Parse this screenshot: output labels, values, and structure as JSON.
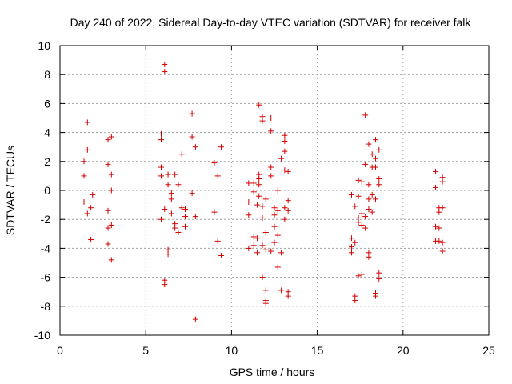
{
  "chart_data": {
    "type": "scatter",
    "title": "Day 240 of 2022, Sidereal Day-to-day VTEC variation (SDTVAR) for receiver falk",
    "xlabel": "GPS time / hours",
    "ylabel": "SDTVAR / TECUs",
    "xlim": [
      0,
      25
    ],
    "ylim": [
      -10,
      10
    ],
    "xticks": [
      0,
      5,
      10,
      15,
      20,
      25
    ],
    "xtick_labels": [
      "0",
      "5",
      "10",
      "15",
      "20",
      "25"
    ],
    "yticks": [
      -10,
      -8,
      -6,
      -4,
      -2,
      0,
      2,
      4,
      6,
      8,
      10
    ],
    "ytick_labels": [
      "-10",
      "-8",
      "-6",
      "-4",
      "-2",
      "0",
      "2",
      "4",
      "6",
      "8",
      "10"
    ],
    "grid": true,
    "marker": "plus",
    "color": "#d40000",
    "series": [
      {
        "name": "SDTVAR",
        "points": [
          [
            1.4,
            2.0
          ],
          [
            1.4,
            1.0
          ],
          [
            1.4,
            -0.8
          ],
          [
            1.6,
            4.7
          ],
          [
            1.6,
            2.8
          ],
          [
            1.6,
            -1.6
          ],
          [
            1.8,
            -1.2
          ],
          [
            1.8,
            -3.4
          ],
          [
            1.9,
            -0.3
          ],
          [
            2.8,
            3.5
          ],
          [
            2.8,
            1.8
          ],
          [
            2.8,
            -1.4
          ],
          [
            2.8,
            -2.6
          ],
          [
            2.8,
            -3.7
          ],
          [
            3.0,
            3.7
          ],
          [
            3.0,
            1.1
          ],
          [
            3.0,
            0.0
          ],
          [
            3.0,
            -2.4
          ],
          [
            3.0,
            -4.8
          ],
          [
            5.9,
            3.9
          ],
          [
            5.9,
            3.5
          ],
          [
            5.9,
            1.6
          ],
          [
            5.9,
            1.0
          ],
          [
            5.9,
            -2.0
          ],
          [
            6.1,
            8.7
          ],
          [
            6.1,
            8.2
          ],
          [
            6.1,
            -1.3
          ],
          [
            6.1,
            -6.2
          ],
          [
            6.1,
            -6.5
          ],
          [
            6.3,
            1.1
          ],
          [
            6.3,
            0.4
          ],
          [
            6.3,
            -4.1
          ],
          [
            6.3,
            -4.4
          ],
          [
            6.5,
            -0.2
          ],
          [
            6.5,
            -0.6
          ],
          [
            6.5,
            -1.6
          ],
          [
            6.7,
            1.1
          ],
          [
            6.7,
            -2.3
          ],
          [
            6.7,
            -2.6
          ],
          [
            6.9,
            0.4
          ],
          [
            6.9,
            -2.9
          ],
          [
            7.1,
            2.5
          ],
          [
            7.1,
            -1.2
          ],
          [
            7.3,
            -1.3
          ],
          [
            7.3,
            -1.8
          ],
          [
            7.3,
            -2.5
          ],
          [
            7.7,
            5.3
          ],
          [
            7.7,
            3.7
          ],
          [
            7.7,
            -0.2
          ],
          [
            7.9,
            3.0
          ],
          [
            7.9,
            -1.8
          ],
          [
            7.9,
            -8.9
          ],
          [
            9.0,
            1.9
          ],
          [
            9.0,
            -1.5
          ],
          [
            9.2,
            1.0
          ],
          [
            9.2,
            -3.5
          ],
          [
            9.4,
            3.0
          ],
          [
            9.4,
            -4.5
          ],
          [
            11.0,
            0.5
          ],
          [
            11.0,
            -0.8
          ],
          [
            11.0,
            -1.7
          ],
          [
            11.0,
            -4.0
          ],
          [
            11.3,
            0.5
          ],
          [
            11.3,
            -0.1
          ],
          [
            11.3,
            -3.2
          ],
          [
            11.3,
            -3.8
          ],
          [
            11.5,
            -1.0
          ],
          [
            11.5,
            -3.3
          ],
          [
            11.5,
            -4.3
          ],
          [
            11.6,
            5.9
          ],
          [
            11.6,
            1.1
          ],
          [
            11.6,
            0.8
          ],
          [
            11.6,
            0.4
          ],
          [
            11.6,
            -0.4
          ],
          [
            11.8,
            5.1
          ],
          [
            11.8,
            4.8
          ],
          [
            11.8,
            -1.1
          ],
          [
            11.8,
            -1.9
          ],
          [
            11.8,
            -3.8
          ],
          [
            11.8,
            -6.0
          ],
          [
            12.0,
            -0.6
          ],
          [
            12.0,
            -2.9
          ],
          [
            12.0,
            -4.1
          ],
          [
            12.0,
            -6.9
          ],
          [
            12.0,
            -7.6
          ],
          [
            12.0,
            -7.8
          ],
          [
            12.3,
            5.0
          ],
          [
            12.3,
            4.1
          ],
          [
            12.3,
            1.6
          ],
          [
            12.3,
            1.0
          ],
          [
            12.3,
            -4.2
          ],
          [
            12.5,
            -1.2
          ],
          [
            12.5,
            -1.7
          ],
          [
            12.5,
            -2.5
          ],
          [
            12.5,
            -3.6
          ],
          [
            12.7,
            0.0
          ],
          [
            12.7,
            -1.4
          ],
          [
            12.7,
            -3.1
          ],
          [
            12.7,
            -5.3
          ],
          [
            12.9,
            2.2
          ],
          [
            12.9,
            -4.3
          ],
          [
            12.9,
            -6.9
          ],
          [
            13.1,
            3.8
          ],
          [
            13.1,
            3.4
          ],
          [
            13.1,
            2.7
          ],
          [
            13.1,
            1.4
          ],
          [
            13.1,
            -1.2
          ],
          [
            13.1,
            -2.0
          ],
          [
            13.3,
            1.3
          ],
          [
            13.3,
            -0.7
          ],
          [
            13.3,
            -1.4
          ],
          [
            13.3,
            -7.0
          ],
          [
            13.3,
            -7.3
          ],
          [
            17.0,
            -0.3
          ],
          [
            17.0,
            -3.3
          ],
          [
            17.0,
            -3.9
          ],
          [
            17.0,
            -4.3
          ],
          [
            17.2,
            -1.1
          ],
          [
            17.2,
            -3.6
          ],
          [
            17.2,
            -7.3
          ],
          [
            17.2,
            -7.6
          ],
          [
            17.4,
            0.7
          ],
          [
            17.4,
            -0.4
          ],
          [
            17.4,
            -1.9
          ],
          [
            17.4,
            -2.2
          ],
          [
            17.4,
            -5.9
          ],
          [
            17.6,
            0.6
          ],
          [
            17.6,
            -1.6
          ],
          [
            17.6,
            -2.4
          ],
          [
            17.6,
            -5.8
          ],
          [
            17.8,
            5.2
          ],
          [
            17.8,
            1.8
          ],
          [
            17.8,
            -1.8
          ],
          [
            17.8,
            -2.6
          ],
          [
            18.0,
            3.2
          ],
          [
            18.0,
            0.4
          ],
          [
            18.0,
            -0.6
          ],
          [
            18.0,
            -1.3
          ],
          [
            18.0,
            -4.3
          ],
          [
            18.0,
            -4.6
          ],
          [
            18.2,
            2.5
          ],
          [
            18.2,
            1.6
          ],
          [
            18.2,
            -0.3
          ],
          [
            18.2,
            -1.5
          ],
          [
            18.4,
            3.5
          ],
          [
            18.4,
            2.2
          ],
          [
            18.4,
            1.6
          ],
          [
            18.4,
            -0.6
          ],
          [
            18.4,
            -7.1
          ],
          [
            18.4,
            -7.3
          ],
          [
            18.6,
            2.8
          ],
          [
            18.6,
            0.8
          ],
          [
            18.6,
            0.4
          ],
          [
            18.6,
            -5.7
          ],
          [
            18.6,
            -6.1
          ],
          [
            21.9,
            1.3
          ],
          [
            21.9,
            0.2
          ],
          [
            21.9,
            -2.5
          ],
          [
            21.9,
            -3.5
          ],
          [
            22.1,
            -1.2
          ],
          [
            22.1,
            -1.5
          ],
          [
            22.1,
            -2.6
          ],
          [
            22.1,
            -3.5
          ],
          [
            22.3,
            0.9
          ],
          [
            22.3,
            0.6
          ],
          [
            22.3,
            -1.2
          ],
          [
            22.3,
            -3.6
          ],
          [
            22.3,
            -4.2
          ]
        ]
      }
    ]
  }
}
